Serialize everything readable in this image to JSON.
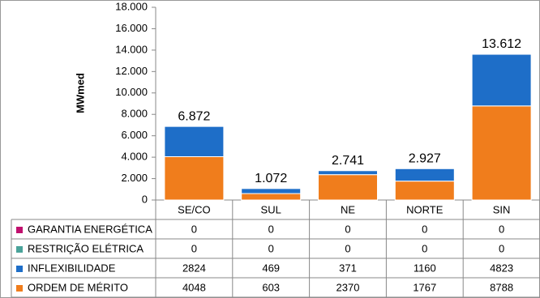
{
  "chart_data": {
    "type": "stacked_bar",
    "y_label": "MWmed",
    "categories": [
      "SE/CO",
      "SUL",
      "NE",
      "NORTE",
      "SIN"
    ],
    "series": [
      {
        "name": "GARANTIA ENERGÉTICA",
        "color": "#c0106e",
        "values": [
          0,
          0,
          0,
          0,
          0
        ]
      },
      {
        "name": "RESTRIÇÃO ELÉTRICA",
        "color": "#4aa39a",
        "values": [
          0,
          0,
          0,
          0,
          0
        ]
      },
      {
        "name": "INFLEXIBILIDADE",
        "color": "#1e6ec8",
        "values": [
          2824,
          469,
          371,
          1160,
          4823
        ]
      },
      {
        "name": "ORDEM DE MÉRITO",
        "color": "#f07d1c",
        "values": [
          4048,
          603,
          2370,
          1767,
          8788
        ]
      }
    ],
    "totals": {
      "values": [
        6872,
        1072,
        2741,
        2927,
        13612
      ],
      "value_labels": [
        "6.872",
        "1.072",
        "2.741",
        "2.927",
        "13.612"
      ]
    },
    "ylim": [
      0,
      18000
    ],
    "yticks": [
      0,
      {
        "value": 2000,
        "label": "2.000"
      },
      {
        "value": 4000,
        "label": "4.000"
      },
      {
        "value": 6000,
        "label": "6.000"
      },
      {
        "value": 8000,
        "label": "8.000"
      },
      {
        "value": 10000,
        "label": "10.000"
      },
      {
        "value": 12000,
        "label": "12.000"
      },
      {
        "value": 14000,
        "label": "14.000"
      },
      {
        "value": 16000,
        "label": "16.000"
      },
      {
        "value": 18000,
        "label": "18.000"
      }
    ],
    "grid": false
  }
}
